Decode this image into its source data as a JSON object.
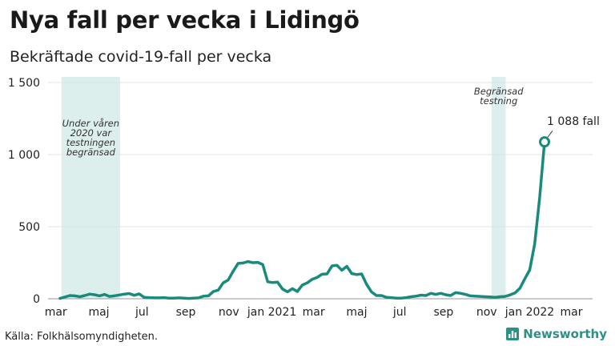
{
  "title": "Nya fall per vecka i Lidingö",
  "subtitle": "Bekräftade covid-19-fall per vecka",
  "source": "Källa: Folkhälsomyndigheten.",
  "brand": "Newsworthy",
  "colors": {
    "line": "#1a8a7c",
    "shade": "#dcefed",
    "grid": "#e1e1e1",
    "text": "#222222",
    "brand": "#2f8f83"
  },
  "chart_data": {
    "type": "line",
    "title": "Nya fall per vecka i Lidingö",
    "subtitle": "Bekräftade covid-19-fall per vecka",
    "ylim": [
      0,
      1500
    ],
    "yticks": [
      0,
      500,
      1000,
      1500
    ],
    "ytick_labels": [
      "0",
      "500",
      "1 000",
      "1 500"
    ],
    "xlim": [
      "2020-02-19",
      "2022-03-31"
    ],
    "xticks": [
      {
        "date": "2020-03-01",
        "label": "mar"
      },
      {
        "date": "2020-05-01",
        "label": "maj"
      },
      {
        "date": "2020-07-01",
        "label": "jul"
      },
      {
        "date": "2020-09-01",
        "label": "sep"
      },
      {
        "date": "2020-11-01",
        "label": "nov"
      },
      {
        "date": "2021-01-01",
        "label": "jan 2021"
      },
      {
        "date": "2021-03-01",
        "label": "mar"
      },
      {
        "date": "2021-05-01",
        "label": "maj"
      },
      {
        "date": "2021-07-01",
        "label": "jul"
      },
      {
        "date": "2021-09-01",
        "label": "sep"
      },
      {
        "date": "2021-11-01",
        "label": "nov"
      },
      {
        "date": "2022-01-01",
        "label": "jan 2022"
      },
      {
        "date": "2022-03-01",
        "label": "mar"
      }
    ],
    "grid": true,
    "shaded_regions": [
      {
        "start": "2020-03-09",
        "end": "2020-05-31",
        "label_lines": [
          "Under våren",
          "2020 var",
          "testningen",
          "begränsad"
        ]
      },
      {
        "start": "2021-11-08",
        "end": "2021-11-28",
        "label_lines": [
          "Begränsad",
          "testning"
        ]
      }
    ],
    "annotation": {
      "text": "1 088 fall",
      "date": "2022-01-22",
      "value": 1088
    },
    "series": [
      {
        "points": [
          [
            "2020-03-07",
            2
          ],
          [
            "2020-03-14",
            12
          ],
          [
            "2020-03-21",
            22
          ],
          [
            "2020-03-28",
            20
          ],
          [
            "2020-04-04",
            14
          ],
          [
            "2020-04-11",
            22
          ],
          [
            "2020-04-18",
            32
          ],
          [
            "2020-04-25",
            28
          ],
          [
            "2020-05-02",
            20
          ],
          [
            "2020-05-09",
            30
          ],
          [
            "2020-05-16",
            16
          ],
          [
            "2020-05-23",
            20
          ],
          [
            "2020-05-30",
            26
          ],
          [
            "2020-06-06",
            32
          ],
          [
            "2020-06-13",
            36
          ],
          [
            "2020-06-20",
            24
          ],
          [
            "2020-06-27",
            34
          ],
          [
            "2020-07-04",
            10
          ],
          [
            "2020-07-11",
            8
          ],
          [
            "2020-07-18",
            6
          ],
          [
            "2020-07-25",
            6
          ],
          [
            "2020-08-01",
            8
          ],
          [
            "2020-08-08",
            4
          ],
          [
            "2020-08-15",
            4
          ],
          [
            "2020-08-22",
            6
          ],
          [
            "2020-08-29",
            4
          ],
          [
            "2020-09-05",
            2
          ],
          [
            "2020-09-12",
            4
          ],
          [
            "2020-09-19",
            6
          ],
          [
            "2020-09-26",
            18
          ],
          [
            "2020-10-03",
            20
          ],
          [
            "2020-10-10",
            50
          ],
          [
            "2020-10-17",
            60
          ],
          [
            "2020-10-24",
            110
          ],
          [
            "2020-10-31",
            130
          ],
          [
            "2020-11-07",
            190
          ],
          [
            "2020-11-14",
            245
          ],
          [
            "2020-11-21",
            248
          ],
          [
            "2020-11-28",
            258
          ],
          [
            "2020-12-05",
            250
          ],
          [
            "2020-12-12",
            252
          ],
          [
            "2020-12-19",
            238
          ],
          [
            "2020-12-26",
            118
          ],
          [
            "2021-01-02",
            112
          ],
          [
            "2021-01-09",
            115
          ],
          [
            "2021-01-16",
            68
          ],
          [
            "2021-01-23",
            48
          ],
          [
            "2021-01-30",
            70
          ],
          [
            "2021-02-06",
            50
          ],
          [
            "2021-02-13",
            95
          ],
          [
            "2021-02-20",
            110
          ],
          [
            "2021-02-27",
            135
          ],
          [
            "2021-03-06",
            148
          ],
          [
            "2021-03-13",
            170
          ],
          [
            "2021-03-20",
            172
          ],
          [
            "2021-03-27",
            228
          ],
          [
            "2021-04-03",
            232
          ],
          [
            "2021-04-10",
            198
          ],
          [
            "2021-04-17",
            225
          ],
          [
            "2021-04-24",
            175
          ],
          [
            "2021-05-01",
            168
          ],
          [
            "2021-05-08",
            172
          ],
          [
            "2021-05-15",
            100
          ],
          [
            "2021-05-22",
            48
          ],
          [
            "2021-05-29",
            22
          ],
          [
            "2021-06-05",
            22
          ],
          [
            "2021-06-12",
            10
          ],
          [
            "2021-06-19",
            8
          ],
          [
            "2021-06-26",
            4
          ],
          [
            "2021-07-03",
            4
          ],
          [
            "2021-07-10",
            8
          ],
          [
            "2021-07-17",
            14
          ],
          [
            "2021-07-24",
            18
          ],
          [
            "2021-07-31",
            25
          ],
          [
            "2021-08-07",
            22
          ],
          [
            "2021-08-14",
            38
          ],
          [
            "2021-08-21",
            30
          ],
          [
            "2021-08-28",
            38
          ],
          [
            "2021-09-04",
            28
          ],
          [
            "2021-09-11",
            22
          ],
          [
            "2021-09-18",
            42
          ],
          [
            "2021-09-25",
            38
          ],
          [
            "2021-10-02",
            30
          ],
          [
            "2021-10-09",
            20
          ],
          [
            "2021-10-16",
            18
          ],
          [
            "2021-10-23",
            16
          ],
          [
            "2021-10-30",
            14
          ],
          [
            "2021-11-06",
            12
          ],
          [
            "2021-11-13",
            10
          ],
          [
            "2021-11-20",
            14
          ],
          [
            "2021-11-27",
            16
          ],
          [
            "2021-12-04",
            26
          ],
          [
            "2021-12-11",
            40
          ],
          [
            "2021-12-18",
            72
          ],
          [
            "2021-12-25",
            138
          ],
          [
            "2022-01-01",
            200
          ],
          [
            "2022-01-08",
            380
          ],
          [
            "2022-01-15",
            700
          ],
          [
            "2022-01-22",
            1088
          ]
        ]
      }
    ]
  }
}
